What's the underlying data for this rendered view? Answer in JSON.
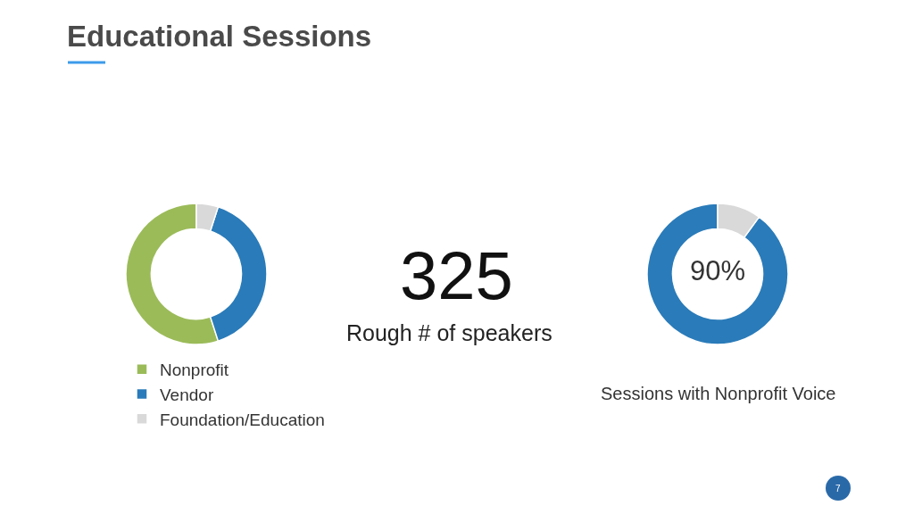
{
  "chart_data": [
    {
      "type": "other",
      "title": "Educational Sessions",
      "annotations": [
        "7"
      ]
    },
    {
      "type": "donut",
      "categories": [
        "Nonprofit",
        "Vendor",
        "Foundation/Education"
      ],
      "values": [
        55,
        40,
        5
      ],
      "colors": [
        "#9bbb59",
        "#2a7bb9",
        "#d9d9d9"
      ],
      "legend": "bottom"
    },
    {
      "type": "other",
      "annotations": [
        "325",
        "Rough # of speakers"
      ]
    },
    {
      "type": "donut",
      "categories": [
        null,
        null
      ],
      "values": [
        90,
        10
      ],
      "colors": [
        "#2a7bb9",
        "#d9d9d9"
      ],
      "annotations": [
        "90%",
        "Sessions with Nonprofit Voice"
      ]
    }
  ]
}
